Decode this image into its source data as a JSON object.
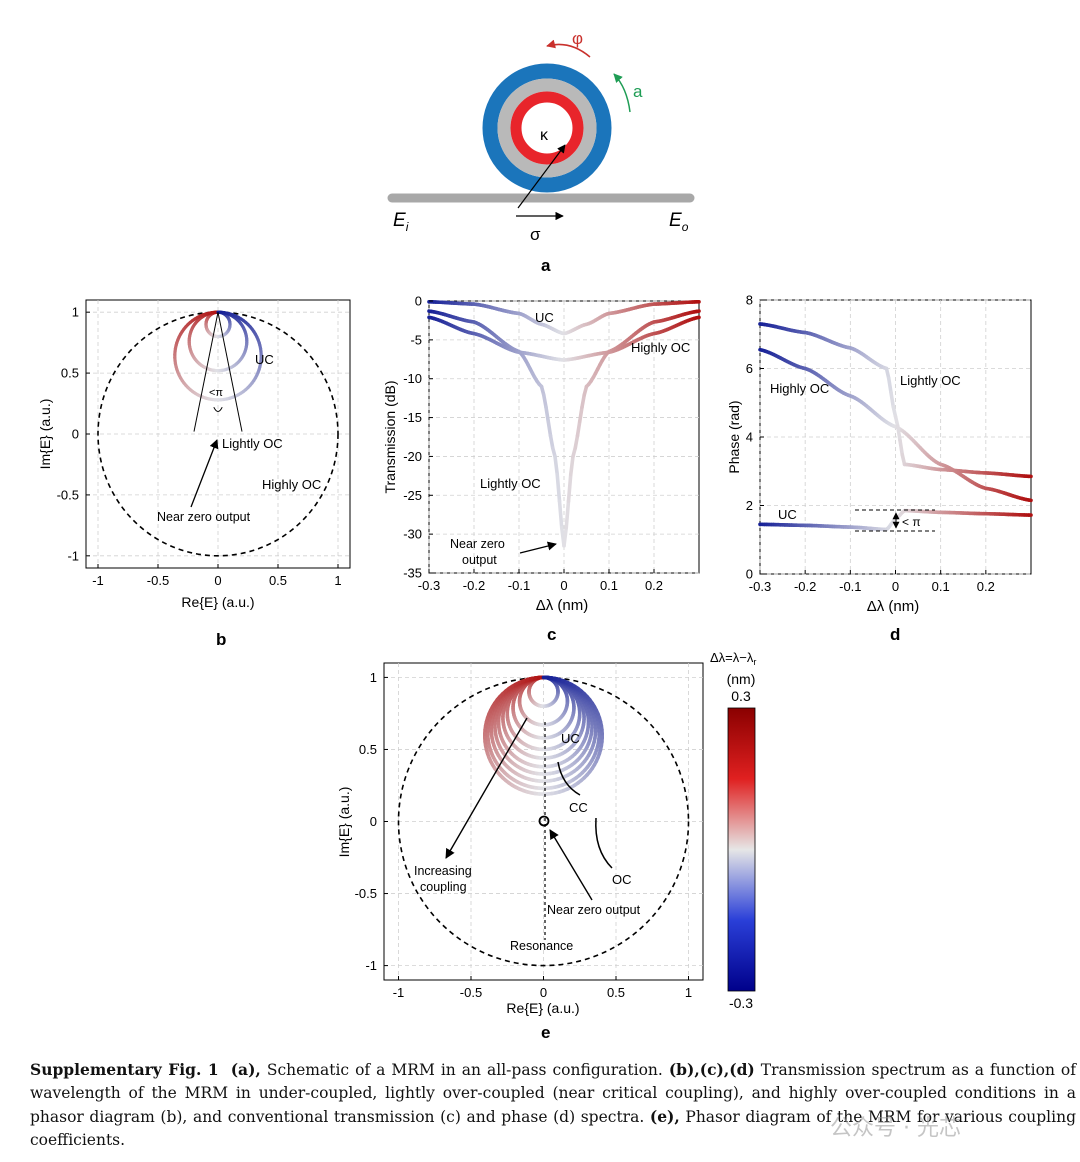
{
  "figure": {
    "panel_labels": [
      "a",
      "b",
      "c",
      "d",
      "e"
    ],
    "schematic": {
      "phi_label": "φ",
      "a_label": "a",
      "kappa_label": "κ",
      "sigma_label": "σ",
      "ei_main": "E",
      "ei_sub": "i",
      "eo_main": "E",
      "eo_sub": "o",
      "colors": {
        "outer": "#1b75bb",
        "middle": "#b9b9b9",
        "inner": "#e8252b",
        "bus": "#a8a8a8"
      }
    },
    "panel_b": {
      "xlabel": "Re{E} (a.u.)",
      "ylabel": "Im{E} (a.u.)",
      "xticks": [
        "-1",
        "-0.5",
        "0",
        "0.5",
        "1"
      ],
      "yticks": [
        "1",
        "0.5",
        "0",
        "-0.5",
        "-1"
      ],
      "annotations": {
        "uc": "UC",
        "angle": "<π",
        "lightly": "Lightly OC",
        "highly": "Highly OC",
        "nearzero": "Near zero output"
      }
    },
    "panel_c": {
      "xlabel": "Δλ (nm)",
      "ylabel": "Transmission (dB)",
      "xticks": [
        "-0.3",
        "-0.2",
        "-0.1",
        "0",
        "0.1",
        "0.2"
      ],
      "yticks": [
        "0",
        "-5",
        "-10",
        "-15",
        "-20",
        "-25",
        "-30",
        "-35"
      ],
      "annotations": {
        "uc": "UC",
        "highly": "Highly OC",
        "lightly": "Lightly OC",
        "nz1": "Near zero",
        "nz2": "output"
      }
    },
    "panel_d": {
      "xlabel": "Δλ (nm)",
      "ylabel": "Phase (rad)",
      "xticks": [
        "-0.3",
        "-0.2",
        "-0.1",
        "0",
        "0.1",
        "0.2"
      ],
      "yticks": [
        "8",
        "6",
        "4",
        "2",
        "0"
      ],
      "annotations": {
        "highly": "Highly OC",
        "lightly": "Lightly OC",
        "uc": "UC",
        "pi": "< π"
      }
    },
    "panel_e": {
      "xlabel": "Re{E} (a.u.)",
      "ylabel": "Im{E} (a.u.)",
      "xticks": [
        "-1",
        "-0.5",
        "0",
        "0.5",
        "1"
      ],
      "yticks": [
        "1",
        "0.5",
        "0",
        "-0.5",
        "-1"
      ],
      "annotations": {
        "uc": "UC",
        "cc": "CC",
        "oc": "OC",
        "inc1": "Increasing",
        "inc2": "coupling",
        "nearzero": "Near zero output",
        "resonance": "Resonance"
      },
      "colorbar": {
        "title1": "Δλ=λ−λ",
        "title_sub": "r",
        "title2": "(nm)",
        "max": "0.3",
        "min": "-0.3"
      }
    }
  },
  "chart_data": [
    {
      "type": "line",
      "panel": "b",
      "title": "",
      "xlabel": "Re{E} (a.u.)",
      "ylabel": "Im{E} (a.u.)",
      "xlim": [
        -1.1,
        1.1
      ],
      "ylim": [
        -1.1,
        1.1
      ],
      "series": [
        {
          "name": "UC",
          "kappa": 0.2
        },
        {
          "name": "Lightly OC",
          "kappa": 0.48
        },
        {
          "name": "Highly OC",
          "kappa": 0.72
        },
        {
          "name": "unit circle",
          "kappa": 1.0
        }
      ]
    },
    {
      "type": "line",
      "panel": "c",
      "xlabel": "Δλ (nm)",
      "ylabel": "Transmission (dB)",
      "xlim": [
        -0.3,
        0.3
      ],
      "ylim": [
        -35,
        0
      ],
      "series": [
        {
          "name": "UC",
          "x": [
            -0.3,
            -0.2,
            -0.1,
            -0.05,
            0,
            0.05,
            0.1,
            0.2,
            0.3
          ],
          "y": [
            -0.1,
            -0.4,
            -1.6,
            -3.0,
            -4.2,
            -3.0,
            -1.6,
            -0.4,
            -0.1
          ]
        },
        {
          "name": "Lightly OC",
          "x": [
            -0.3,
            -0.2,
            -0.1,
            -0.05,
            -0.02,
            0,
            0.02,
            0.05,
            0.1,
            0.2,
            0.3
          ],
          "y": [
            -1.3,
            -2.7,
            -6.5,
            -11,
            -20,
            -31.5,
            -20,
            -11,
            -6.5,
            -2.7,
            -1.3
          ]
        },
        {
          "name": "Highly OC",
          "x": [
            -0.3,
            -0.2,
            -0.1,
            0,
            0.1,
            0.2,
            0.3
          ],
          "y": [
            -2.1,
            -4.2,
            -6.6,
            -7.6,
            -6.6,
            -4.2,
            -2.1
          ]
        }
      ]
    },
    {
      "type": "line",
      "panel": "d",
      "xlabel": "Δλ (nm)",
      "ylabel": "Phase (rad)",
      "xlim": [
        -0.3,
        0.3
      ],
      "ylim": [
        0,
        8
      ],
      "series": [
        {
          "name": "Highly OC",
          "x": [
            -0.3,
            -0.2,
            -0.1,
            0,
            0.1,
            0.2,
            0.3
          ],
          "y": [
            6.55,
            6.0,
            5.2,
            4.3,
            3.2,
            2.5,
            2.15
          ]
        },
        {
          "name": "Lightly OC",
          "x": [
            -0.3,
            -0.2,
            -0.1,
            -0.02,
            0,
            0.02,
            0.1,
            0.2,
            0.3
          ],
          "y": [
            7.3,
            7.05,
            6.6,
            6.0,
            4.6,
            3.2,
            3.05,
            2.95,
            2.85
          ]
        },
        {
          "name": "UC",
          "x": [
            -0.3,
            -0.2,
            -0.1,
            -0.02,
            0,
            0.02,
            0.1,
            0.2,
            0.3
          ],
          "y": [
            1.45,
            1.42,
            1.37,
            1.3,
            1.6,
            1.85,
            1.8,
            1.76,
            1.72
          ]
        }
      ]
    },
    {
      "type": "line",
      "panel": "e",
      "xlabel": "Re{E} (a.u.)",
      "ylabel": "Im{E} (a.u.)",
      "xlim": [
        -1.1,
        1.1
      ],
      "ylim": [
        -1.1,
        1.1
      ],
      "series": [
        {
          "name": "coupling family",
          "kappa": [
            0.2,
            0.33,
            0.42,
            0.5,
            0.56,
            0.62,
            0.67,
            0.72,
            0.77,
            0.81
          ]
        },
        {
          "name": "unit circle",
          "kappa": 1.0
        }
      ],
      "colorbar_range": [
        -0.3,
        0.3
      ],
      "colorbar_label": "Δλ=λ−λr (nm)"
    }
  ],
  "caption": {
    "fig_label": "Supplementary Fig. 1",
    "a_label": "(a),",
    "a_text": " Schematic of a MRM in an all-pass configuration. ",
    "bcd_label": "(b),(c),(d)",
    "bcd_text": " Transmission spectrum as a function of wavelength of the MRM in under-coupled, lightly over-coupled (near critical coupling), and highly over-coupled conditions in a phasor diagram (b), and conventional transmission (c) and phase (d) spectra. ",
    "e_label": "(e),",
    "e_text": " Phasor diagram of the MRM for various coupling coefficients."
  },
  "watermark": "公众号 · 光芯"
}
